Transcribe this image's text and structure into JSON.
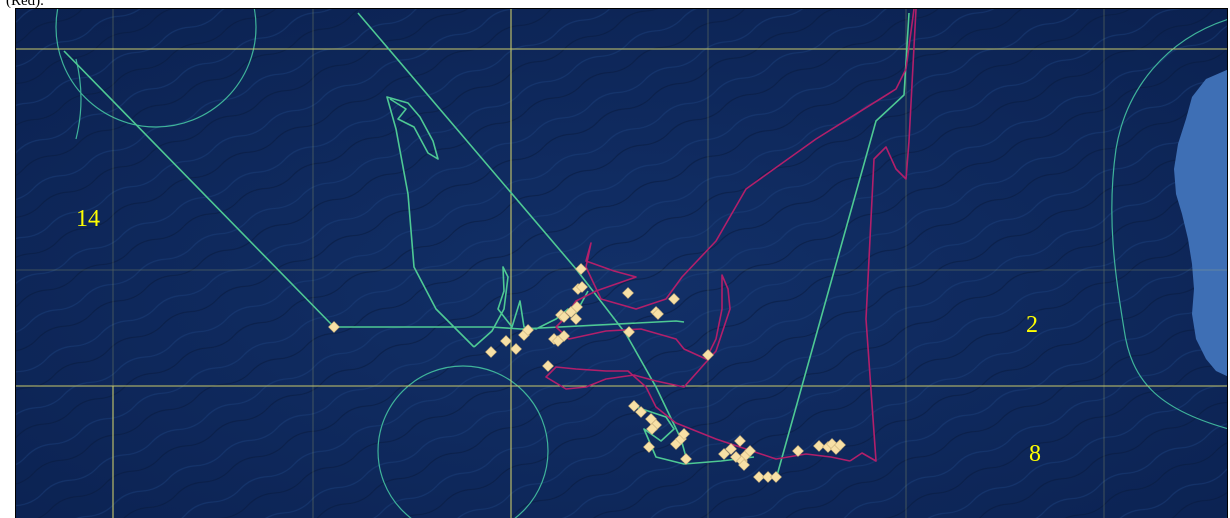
{
  "caption_fragment": "(Red).",
  "zone_labels": [
    {
      "text": "14",
      "name": "zone-label-14"
    },
    {
      "text": "2",
      "name": "zone-label-2"
    },
    {
      "text": "8",
      "name": "zone-label-8"
    }
  ],
  "colors": {
    "ocean": "#0f2a5c",
    "land": "#3e6fb5",
    "grid_lines": "#c8c86a",
    "buffer_circles": "#3fb39a",
    "green_track": "#4ec994",
    "red_track": "#b21f6a",
    "markers": "#f7e0a6",
    "zone_labels": "#ffff00",
    "caption": "#000000"
  },
  "tracks": [
    {
      "color_key": "green_track"
    },
    {
      "color_key": "red_track"
    }
  ]
}
